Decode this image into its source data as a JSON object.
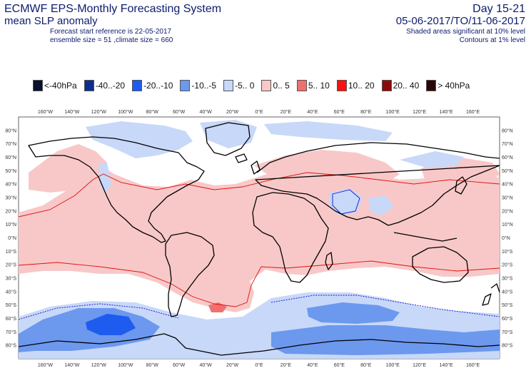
{
  "header": {
    "title": "ECMWF EPS-Monthly Forecasting System",
    "subtitle": "mean SLP anomaly",
    "forecast_ref": "Forecast start reference is 22-05-2017",
    "ensemble": "ensemble size = 51  ,climate size = 660",
    "period_label": "Day 15-21",
    "period_dates": "05-06-2017/TO/11-06-2017",
    "sig_shaded": "Shaded areas significant at 10% level",
    "sig_contours": "Contours at 1% level"
  },
  "legend": [
    {
      "label": "<-40hPa",
      "color": "#0a0f2e"
    },
    {
      "label": "-40..-20",
      "color": "#0c2f8f"
    },
    {
      "label": "-20..-10",
      "color": "#1e5cf0"
    },
    {
      "label": "-10..-5",
      "color": "#6c98ee"
    },
    {
      "label": "-5..  0",
      "color": "#c8d8f8"
    },
    {
      "label": "0..  5",
      "color": "#f8c8c8"
    },
    {
      "label": "5..  10",
      "color": "#f07070"
    },
    {
      "label": "10..  20",
      "color": "#ff1010"
    },
    {
      "label": "20..  40",
      "color": "#8b0a0a"
    },
    {
      "label": ">  40hPa",
      "color": "#2a0505"
    }
  ],
  "axes": {
    "lon_ticks": [
      "160°W",
      "140°W",
      "120°W",
      "100°W",
      "80°W",
      "60°W",
      "40°W",
      "20°W",
      "0°E",
      "20°E",
      "40°E",
      "60°E",
      "80°E",
      "100°E",
      "120°E",
      "140°E",
      "160°E"
    ],
    "lat_ticks": [
      "80°N",
      "70°N",
      "60°N",
      "50°N",
      "40°N",
      "30°N",
      "20°N",
      "10°N",
      "0°N",
      "10°S",
      "20°S",
      "30°S",
      "40°S",
      "50°S",
      "60°S",
      "70°S",
      "80°S"
    ]
  },
  "colors": {
    "land_outline": "#000000",
    "contour_pos": "#e01010",
    "contour_neg": "#1010d0"
  }
}
